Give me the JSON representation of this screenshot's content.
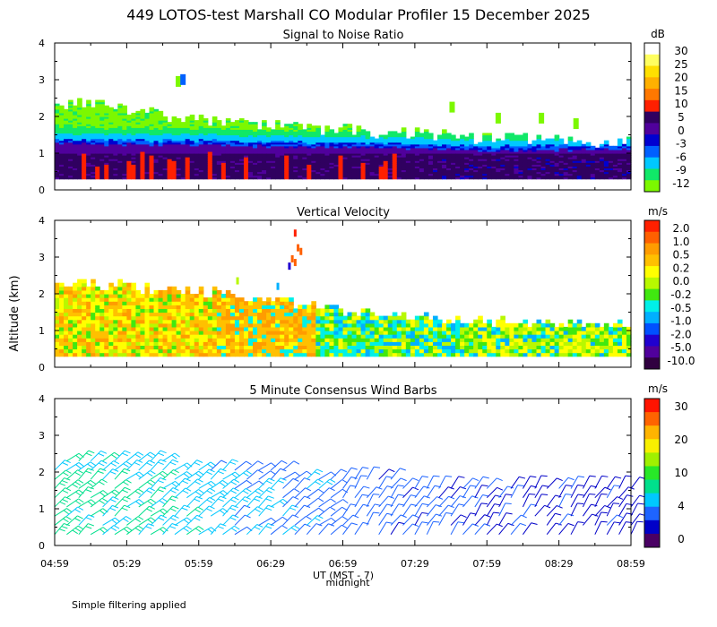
{
  "title": "449 LOTOS-test Marshall CO Modular Profiler 15 December 2025",
  "ylabel": "Altitude (km)",
  "xlabel": "UT (MST - 7)",
  "midnight_label": "midnight",
  "footnote": "Simple filtering applied",
  "x_ticks": [
    "04:59",
    "05:29",
    "05:59",
    "06:29",
    "06:59",
    "07:29",
    "07:59",
    "08:29",
    "08:59"
  ],
  "y_ticks": [
    "0",
    "1",
    "2",
    "3",
    "4"
  ],
  "colors": {
    "snr": [
      "#7cf800",
      "#10e868",
      "#00c8ff",
      "#0060ff",
      "#0000d0",
      "#50009c",
      "#300060",
      "#ff2000",
      "#ff7800",
      "#ffb000",
      "#ffe000",
      "#ffff60",
      "#ffffff"
    ],
    "velocity": [
      "#300040",
      "#50009c",
      "#2000d0",
      "#0050ff",
      "#00b0ff",
      "#00f0e8",
      "#40e810",
      "#b8f800",
      "#ffff00",
      "#ffc000",
      "#ff9c00",
      "#ff6000",
      "#ff2000"
    ],
    "wind": [
      "#4a0064",
      "#0000c8",
      "#1e64ff",
      "#00c8ff",
      "#00e08c",
      "#28e828",
      "#a0f000",
      "#f8f000",
      "#ffb400",
      "#ff6400",
      "#ff1400"
    ]
  },
  "chart_data": [
    {
      "type": "heatmap",
      "title": "Signal to Noise Ratio",
      "units": "dB",
      "x_range": [
        "04:59",
        "08:59"
      ],
      "ylim": [
        0,
        4
      ],
      "colorbar_ticks": [
        "30",
        "25",
        "20",
        "15",
        "10",
        "5",
        "0",
        "-3",
        "-6",
        "-9",
        "-12"
      ],
      "colorbar_range": [
        -12,
        30
      ],
      "boundary_height_km_by_hour": {
        "04:59": 1.25,
        "05:59": 1.2,
        "06:59": 1.15,
        "07:59": 1.05,
        "08:59": 1.1
      },
      "echo_top_km_by_hour": {
        "04:59": 2.4,
        "05:59": 1.9,
        "06:59": 1.6,
        "07:59": 1.4,
        "08:59": 1.25
      }
    },
    {
      "type": "heatmap",
      "title": "Vertical Velocity",
      "units": "m/s",
      "x_range": [
        "04:59",
        "08:59"
      ],
      "ylim": [
        0,
        4
      ],
      "colorbar_ticks": [
        "2.0",
        "1.0",
        "0.5",
        "0.2",
        "0.0",
        "-0.2",
        "-0.5",
        "-1.0",
        "-2.0",
        "-5.0",
        "-10.0"
      ],
      "colorbar_range": [
        -10,
        2
      ],
      "data_top_km_by_hour": {
        "04:59": 2.3,
        "05:59": 2.0,
        "06:59": 1.5,
        "07:59": 1.2,
        "08:59": 1.15
      }
    },
    {
      "type": "wind barbs",
      "title": "5 Minute Consensus Wind Barbs",
      "units": "m/s",
      "x_range": [
        "04:59",
        "08:59"
      ],
      "ylim": [
        0,
        4
      ],
      "colorbar_ticks": [
        "30",
        "20",
        "10",
        "4",
        "0"
      ],
      "colorbar_range": [
        0,
        34
      ],
      "interval_minutes": 5,
      "approx_speed_m_s_by_hour": {
        "04:59": 12,
        "05:59": 9,
        "06:59": 6,
        "07:59": 4,
        "08:59": 3
      }
    }
  ]
}
